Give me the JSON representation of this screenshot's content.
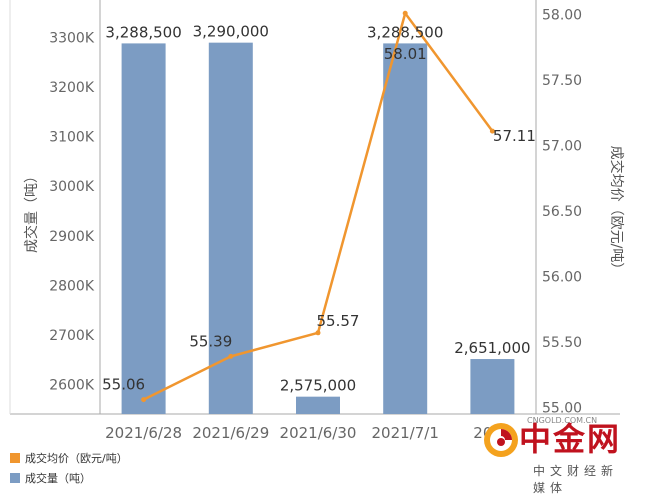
{
  "chart_data": {
    "type": "bar+line",
    "categories": [
      "2021/6/28",
      "2021/6/29",
      "2021/6/30",
      "2021/7/1",
      "2021/7/2"
    ],
    "category_labels": [
      "2021/6/28",
      "2021/6/29",
      "2021/6/30",
      "2021/7/1",
      "2021"
    ],
    "series": [
      {
        "name": "成交量（吨）",
        "type": "bar",
        "axis": "left",
        "color": "#7c9cc3",
        "values": [
          3288500,
          3290000,
          2575000,
          3288500,
          2651000
        ],
        "labels": [
          "3,288,500",
          "3,290,000",
          "2,575,000",
          "3,288,500",
          "2,651,000"
        ]
      },
      {
        "name": "成交均价（欧元/吨）",
        "type": "line",
        "axis": "right",
        "color": "#f0962f",
        "values": [
          55.06,
          55.39,
          55.57,
          58.01,
          57.11
        ],
        "labels": [
          "55.06",
          "55.39",
          "55.57",
          "58.01",
          "57.11"
        ]
      }
    ],
    "y_left": {
      "label": "成交量（吨）",
      "ticks": [
        2600000,
        2700000,
        2800000,
        2900000,
        3000000,
        3100000,
        3200000,
        3300000
      ],
      "tick_labels": [
        "2600K",
        "2700K",
        "2800K",
        "2900K",
        "3000K",
        "3100K",
        "3200K",
        "3300K"
      ],
      "range": [
        2540000,
        3360000
      ]
    },
    "y_right": {
      "label": "成交均价（欧元/吨）",
      "ticks": [
        55.0,
        55.5,
        56.0,
        56.5,
        57.0,
        57.5,
        58.0
      ],
      "tick_labels": [
        "55.00",
        "55.50",
        "56.00",
        "56.50",
        "57.00",
        "57.50",
        "58.00"
      ],
      "range": [
        54.95,
        58.05
      ]
    },
    "grid": false
  },
  "legend": [
    {
      "label": "成交均价（欧元/吨）",
      "color": "#f0962f"
    },
    {
      "label": "成交量（吨）",
      "color": "#7c9cc3"
    }
  ],
  "watermark": {
    "name": "中金网",
    "url": "CNGOLD.COM.CN",
    "sub": "中文财经新媒体"
  }
}
